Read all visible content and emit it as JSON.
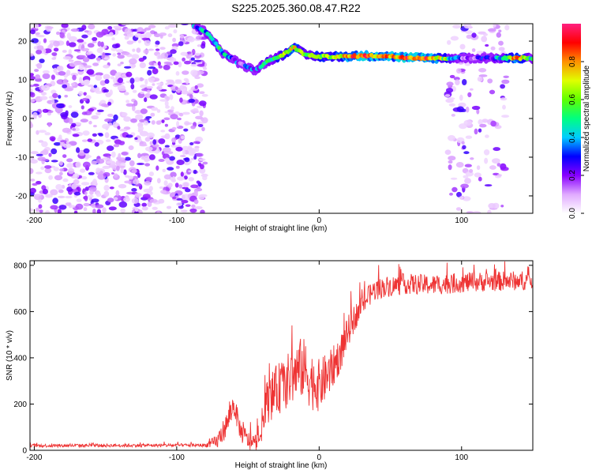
{
  "title": "S225.2025.360.08.47.R22",
  "chart_data": [
    {
      "type": "heatmap",
      "name": "spectrogram",
      "xlabel": "Height of straight line (km)",
      "ylabel": "Frequency (Hz)",
      "xlim": [
        -203,
        150
      ],
      "ylim": [
        -24.5,
        24.5
      ],
      "xticks": [
        -200,
        -100,
        0,
        100
      ],
      "yticks": [
        -20,
        -10,
        0,
        10,
        20
      ],
      "noise_regions": [
        {
          "x0": -203,
          "x1": -80,
          "density": 0.6
        },
        {
          "x0": 90,
          "x1": 132,
          "density": 0.25
        }
      ],
      "blank_region": {
        "x0": -75,
        "x1": 88
      },
      "ridge": [
        {
          "x": -88,
          "freq": 24.0,
          "amp": 0.3
        },
        {
          "x": -78,
          "freq": 22.0,
          "amp": 0.45
        },
        {
          "x": -68,
          "freq": 17.0,
          "amp": 0.4
        },
        {
          "x": -55,
          "freq": 14.0,
          "amp": 0.25
        },
        {
          "x": -45,
          "freq": 12.5,
          "amp": 0.3
        },
        {
          "x": -35,
          "freq": 15.0,
          "amp": 0.45
        },
        {
          "x": -25,
          "freq": 16.5,
          "amp": 0.6
        },
        {
          "x": -18,
          "freq": 18.5,
          "amp": 0.7
        },
        {
          "x": -10,
          "freq": 16.5,
          "amp": 0.55
        },
        {
          "x": 0,
          "freq": 16.0,
          "amp": 0.6
        },
        {
          "x": 15,
          "freq": 16.0,
          "amp": 0.7
        },
        {
          "x": 30,
          "freq": 16.2,
          "amp": 0.9
        },
        {
          "x": 45,
          "freq": 16.2,
          "amp": 0.75
        },
        {
          "x": 60,
          "freq": 15.8,
          "amp": 0.85
        },
        {
          "x": 75,
          "freq": 15.6,
          "amp": 0.9
        },
        {
          "x": 88,
          "freq": 15.6,
          "amp": 0.6
        },
        {
          "x": 100,
          "freq": 15.6,
          "amp": 0.2
        },
        {
          "x": 120,
          "freq": 15.6,
          "amp": 0.25
        },
        {
          "x": 140,
          "freq": 15.6,
          "amp": 0.85
        },
        {
          "x": 150,
          "freq": 15.6,
          "amp": 0.4
        }
      ],
      "colorbar": {
        "label": "Normalized spectral amplitude",
        "range": [
          0,
          1
        ],
        "ticks": [
          "0.0",
          "0.2",
          "0.4",
          "0.6",
          "0.8"
        ]
      }
    },
    {
      "type": "line",
      "name": "snr",
      "xlabel": "Height of straight line (km)",
      "ylabel": "SNR (10 * v/v)",
      "xlim": [
        -203,
        150
      ],
      "ylim": [
        0,
        820
      ],
      "xticks": [
        -200,
        -100,
        0,
        100
      ],
      "yticks": [
        0,
        200,
        400,
        600,
        800
      ],
      "color": "#ee3333",
      "trend": [
        {
          "x": -203,
          "y": 20
        },
        {
          "x": -80,
          "y": 22
        },
        {
          "x": -72,
          "y": 35
        },
        {
          "x": -65,
          "y": 110
        },
        {
          "x": -60,
          "y": 200
        },
        {
          "x": -55,
          "y": 80
        },
        {
          "x": -48,
          "y": 30
        },
        {
          "x": -42,
          "y": 40
        },
        {
          "x": -38,
          "y": 200
        },
        {
          "x": -30,
          "y": 260
        },
        {
          "x": -22,
          "y": 300
        },
        {
          "x": -12,
          "y": 360
        },
        {
          "x": -5,
          "y": 300
        },
        {
          "x": 0,
          "y": 280
        },
        {
          "x": 8,
          "y": 340
        },
        {
          "x": 15,
          "y": 420
        },
        {
          "x": 22,
          "y": 540
        },
        {
          "x": 30,
          "y": 630
        },
        {
          "x": 38,
          "y": 690
        },
        {
          "x": 45,
          "y": 705
        },
        {
          "x": 60,
          "y": 720
        },
        {
          "x": 80,
          "y": 715
        },
        {
          "x": 100,
          "y": 725
        },
        {
          "x": 120,
          "y": 730
        },
        {
          "x": 150,
          "y": 735
        }
      ],
      "noise_amplitude": [
        {
          "x": -203,
          "a": 12
        },
        {
          "x": -80,
          "a": 12
        },
        {
          "x": -65,
          "a": 90
        },
        {
          "x": -45,
          "a": 60
        },
        {
          "x": -35,
          "a": 170
        },
        {
          "x": -10,
          "a": 230
        },
        {
          "x": 10,
          "a": 150
        },
        {
          "x": 30,
          "a": 80
        },
        {
          "x": 45,
          "a": 75
        },
        {
          "x": 150,
          "a": 70
        }
      ]
    }
  ]
}
